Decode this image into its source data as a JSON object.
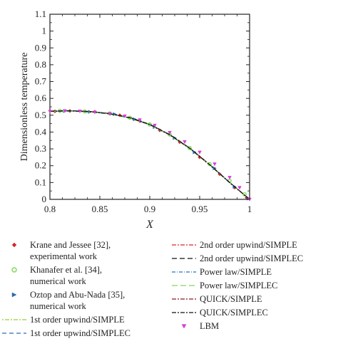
{
  "chart_data": {
    "type": "line",
    "xlabel": "X",
    "ylabel": "Dimensionless temperature",
    "xlim": [
      0.8,
      1.0
    ],
    "ylim": [
      0,
      1.1
    ],
    "x_ticks": [
      "0.8",
      "0.85",
      "0.9",
      "0.95",
      "1"
    ],
    "y_ticks": [
      "0",
      "0.1",
      "0.2",
      "0.3",
      "0.4",
      "0.5",
      "0.6",
      "0.7",
      "0.8",
      "0.9",
      "1",
      "1.1"
    ],
    "grid": false,
    "legend_placement": "bottom",
    "series": [
      {
        "name": "Krane and Jessee [32], experimental work",
        "kind": "marker",
        "marker": "diamond",
        "color": "#d62728",
        "x": [
          0.805,
          0.82,
          0.845,
          0.87,
          0.89,
          0.91,
          0.93,
          0.95,
          0.97,
          0.985,
          0.997
        ],
        "y": [
          0.523,
          0.525,
          0.52,
          0.5,
          0.465,
          0.41,
          0.34,
          0.25,
          0.15,
          0.07,
          0.01
        ]
      },
      {
        "name": "Khanafer et al. [34], numerical work",
        "kind": "marker",
        "marker": "circle",
        "color": "#7ed957",
        "x": [
          0.81,
          0.835,
          0.86,
          0.88,
          0.9,
          0.92,
          0.94,
          0.96,
          0.98,
          0.995
        ],
        "y": [
          0.526,
          0.522,
          0.51,
          0.485,
          0.445,
          0.385,
          0.305,
          0.21,
          0.11,
          0.03
        ]
      },
      {
        "name": "Oztop and Abu-Nada [35], numerical work",
        "kind": "marker",
        "marker": "triangle",
        "color": "#2b6cb0",
        "x": [
          0.815,
          0.84,
          0.865,
          0.885,
          0.905,
          0.925,
          0.945,
          0.965,
          0.985,
          0.999
        ],
        "y": [
          0.525,
          0.52,
          0.506,
          0.476,
          0.43,
          0.365,
          0.28,
          0.185,
          0.075,
          0.005
        ]
      },
      {
        "name": "1st order upwind/SIMPLE",
        "kind": "line",
        "dash": "2,2,6,2",
        "color": "#9acd32",
        "x": [
          0.8,
          0.82,
          0.84,
          0.86,
          0.88,
          0.9,
          0.92,
          0.94,
          0.96,
          0.98,
          1.0
        ],
        "y": [
          0.522,
          0.526,
          0.521,
          0.509,
          0.484,
          0.444,
          0.383,
          0.303,
          0.205,
          0.1,
          0.0
        ]
      },
      {
        "name": "1st order upwind/SIMPLEC",
        "kind": "line",
        "dash": "6,4",
        "color": "#2b6cb0",
        "x": [
          0.8,
          0.82,
          0.84,
          0.86,
          0.88,
          0.9,
          0.92,
          0.94,
          0.96,
          0.98,
          1.0
        ],
        "y": [
          0.523,
          0.527,
          0.522,
          0.51,
          0.485,
          0.445,
          0.384,
          0.304,
          0.206,
          0.101,
          0.0
        ]
      },
      {
        "name": "2nd order upwind/SIMPLE",
        "kind": "line",
        "dash": "6,2,2,2",
        "color": "#d62728",
        "x": [
          0.8,
          0.82,
          0.84,
          0.86,
          0.88,
          0.9,
          0.92,
          0.94,
          0.96,
          0.98,
          1.0
        ],
        "y": [
          0.524,
          0.526,
          0.521,
          0.508,
          0.483,
          0.443,
          0.382,
          0.302,
          0.204,
          0.099,
          0.0
        ]
      },
      {
        "name": "2nd order upwind/SIMPLEC",
        "kind": "line",
        "dash": "7,4",
        "color": "#111111",
        "x": [
          0.8,
          0.82,
          0.84,
          0.86,
          0.88,
          0.9,
          0.92,
          0.94,
          0.96,
          0.98,
          1.0
        ],
        "y": [
          0.524,
          0.527,
          0.522,
          0.51,
          0.486,
          0.446,
          0.385,
          0.305,
          0.207,
          0.101,
          0.0
        ]
      },
      {
        "name": "Power law/SIMPLE",
        "kind": "line",
        "dash": "5,2,1,2",
        "color": "#1f6fd1",
        "x": [
          0.8,
          0.82,
          0.84,
          0.86,
          0.88,
          0.9,
          0.92,
          0.94,
          0.96,
          0.98,
          1.0
        ],
        "y": [
          0.523,
          0.525,
          0.52,
          0.508,
          0.484,
          0.444,
          0.383,
          0.303,
          0.205,
          0.1,
          0.0
        ]
      },
      {
        "name": "Power law/SIMPLEC",
        "kind": "line",
        "dash": "8,4",
        "color": "#7ed957",
        "x": [
          0.8,
          0.82,
          0.84,
          0.86,
          0.88,
          0.9,
          0.92,
          0.94,
          0.96,
          0.98,
          1.0
        ],
        "y": [
          0.522,
          0.524,
          0.519,
          0.507,
          0.482,
          0.442,
          0.381,
          0.301,
          0.203,
          0.099,
          0.0
        ]
      },
      {
        "name": "QUICK/SIMPLE",
        "kind": "line",
        "dash": "6,2,2,2",
        "color": "#8b1a1a",
        "x": [
          0.8,
          0.82,
          0.84,
          0.86,
          0.88,
          0.9,
          0.92,
          0.94,
          0.96,
          0.98,
          1.0
        ],
        "y": [
          0.523,
          0.526,
          0.521,
          0.509,
          0.485,
          0.445,
          0.384,
          0.304,
          0.206,
          0.1,
          0.0
        ]
      },
      {
        "name": "QUICK/SIMPLEC",
        "kind": "line",
        "dash": "6,2,2,2",
        "color": "#111111",
        "x": [
          0.8,
          0.82,
          0.84,
          0.86,
          0.88,
          0.9,
          0.92,
          0.94,
          0.96,
          0.98,
          1.0
        ],
        "y": [
          0.524,
          0.526,
          0.521,
          0.509,
          0.485,
          0.445,
          0.384,
          0.304,
          0.206,
          0.1,
          0.0
        ]
      },
      {
        "name": "LBM",
        "kind": "marker",
        "marker": "triangle-down",
        "color": "#d63fd6",
        "x": [
          0.8,
          0.815,
          0.83,
          0.845,
          0.86,
          0.875,
          0.89,
          0.905,
          0.92,
          0.935,
          0.95,
          0.965,
          0.98,
          0.99,
          1.0
        ],
        "y": [
          0.522,
          0.526,
          0.524,
          0.518,
          0.509,
          0.495,
          0.472,
          0.44,
          0.397,
          0.342,
          0.28,
          0.21,
          0.13,
          0.07,
          0.0
        ]
      }
    ]
  },
  "legend": {
    "left": [
      {
        "lines": [
          "Krane and Jessee [32],",
          "experimental work"
        ],
        "series": 0
      },
      {
        "lines": [
          "Khanafer et al. [34],",
          "numerical work"
        ],
        "series": 1
      },
      {
        "lines": [
          "Oztop and Abu-Nada [35],",
          "numerical work"
        ],
        "series": 2
      },
      {
        "lines": [
          "1st order upwind/SIMPLE"
        ],
        "series": 3
      },
      {
        "lines": [
          "1st order upwind/SIMPLEC"
        ],
        "series": 4
      }
    ],
    "right": [
      {
        "lines": [
          "2nd order upwind/SIMPLE"
        ],
        "series": 5
      },
      {
        "lines": [
          "2nd order upwind/SIMPLEC"
        ],
        "series": 6
      },
      {
        "lines": [
          "Power law/SIMPLE"
        ],
        "series": 7
      },
      {
        "lines": [
          "Power law/SIMPLEC"
        ],
        "series": 8
      },
      {
        "lines": [
          "QUICK/SIMPLE"
        ],
        "series": 9
      },
      {
        "lines": [
          "QUICK/SIMPLEC"
        ],
        "series": 10
      },
      {
        "lines": [
          "LBM"
        ],
        "series": 11
      }
    ]
  }
}
